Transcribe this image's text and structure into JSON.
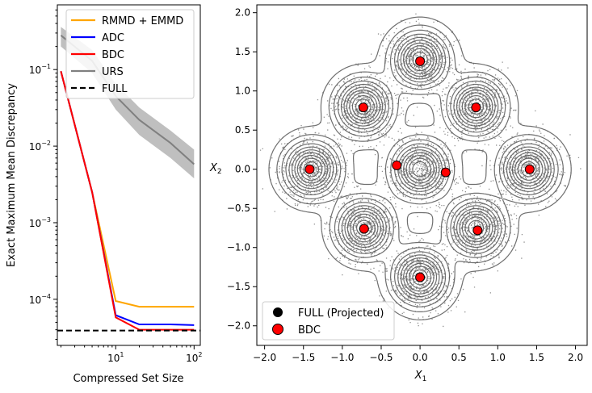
{
  "chart_data": [
    {
      "type": "line",
      "xscale": "log",
      "yscale": "log",
      "xlim": [
        1.8,
        120
      ],
      "ylim": [
        2.5e-05,
        0.7
      ],
      "xlabel": "Compressed Set Size",
      "ylabel": "Exact Maximum Mean Discrepancy",
      "xticks": [
        {
          "value": 10,
          "base": "10",
          "exp": "1"
        },
        {
          "value": 100,
          "base": "10",
          "exp": "2"
        }
      ],
      "yticks": [
        {
          "value": 0.0001,
          "base": "10",
          "exp": "−4"
        },
        {
          "value": 0.001,
          "base": "10",
          "exp": "−3"
        },
        {
          "value": 0.01,
          "base": "10",
          "exp": "−2"
        },
        {
          "value": 0.1,
          "base": "10",
          "exp": "−1"
        }
      ],
      "legend_position": "top-right",
      "series": [
        {
          "name": "RMMD + EMMD",
          "color": "#ffa500",
          "x": [
            2,
            5,
            10,
            20,
            50,
            100
          ],
          "y": [
            0.095,
            0.0025,
            9.5e-05,
            8e-05,
            8e-05,
            8e-05
          ]
        },
        {
          "name": "ADC",
          "color": "#0000ff",
          "x": [
            2,
            5,
            10,
            20,
            50,
            100
          ],
          "y": [
            0.095,
            0.0025,
            6.2e-05,
            4.7e-05,
            4.7e-05,
            4.6e-05
          ]
        },
        {
          "name": "BDC",
          "color": "#ff0000",
          "x": [
            2,
            5,
            10,
            20,
            50,
            100
          ],
          "y": [
            0.095,
            0.0025,
            5.8e-05,
            4e-05,
            4e-05,
            4e-05
          ]
        },
        {
          "name": "URS",
          "color": "#808080",
          "x": [
            2,
            5,
            10,
            20,
            50,
            100
          ],
          "y": [
            0.28,
            0.13,
            0.045,
            0.022,
            0.011,
            0.0058
          ],
          "band_low": [
            0.2,
            0.09,
            0.03,
            0.014,
            0.007,
            0.0038
          ],
          "band_high": [
            0.36,
            0.18,
            0.065,
            0.032,
            0.016,
            0.009
          ]
        },
        {
          "name": "FULL",
          "color": "#000000",
          "dashed": true,
          "hline": 3.9e-05
        }
      ]
    },
    {
      "type": "scatter",
      "xlim": [
        -2.1,
        2.15
      ],
      "ylim": [
        -2.25,
        2.1
      ],
      "xlabel": "X",
      "xlabel_sub": "1",
      "ylabel": "X",
      "ylabel_sub": "2",
      "xticks": [
        "-2.0",
        "-1.5",
        "-1.0",
        "-0.5",
        "0.0",
        "0.5",
        "1.0",
        "1.5",
        "2.0"
      ],
      "yticks": [
        "-2.0",
        "-1.5",
        "-1.0",
        "-0.5",
        "0.0",
        "0.5",
        "1.0",
        "1.5",
        "2.0"
      ],
      "legend_position": "bottom-left",
      "mixture_centers": [
        [
          0,
          1.4
        ],
        [
          -0.73,
          0.8
        ],
        [
          0.72,
          0.8
        ],
        [
          -1.4,
          0
        ],
        [
          0,
          0
        ],
        [
          1.4,
          0
        ],
        [
          -0.72,
          -0.75
        ],
        [
          0.72,
          -0.75
        ],
        [
          0,
          -1.38
        ]
      ],
      "bdc_points": [
        [
          0,
          1.38
        ],
        [
          -0.73,
          0.79
        ],
        [
          0.72,
          0.79
        ],
        [
          -1.42,
          0
        ],
        [
          -0.3,
          0.05
        ],
        [
          0.33,
          -0.04
        ],
        [
          1.41,
          0
        ],
        [
          -0.72,
          -0.76
        ],
        [
          0.74,
          -0.78
        ],
        [
          0,
          -1.38
        ]
      ],
      "legend": [
        {
          "label": "FULL (Projected)",
          "color": "#000000"
        },
        {
          "label": "BDC",
          "color": "#ff0000"
        }
      ]
    }
  ]
}
